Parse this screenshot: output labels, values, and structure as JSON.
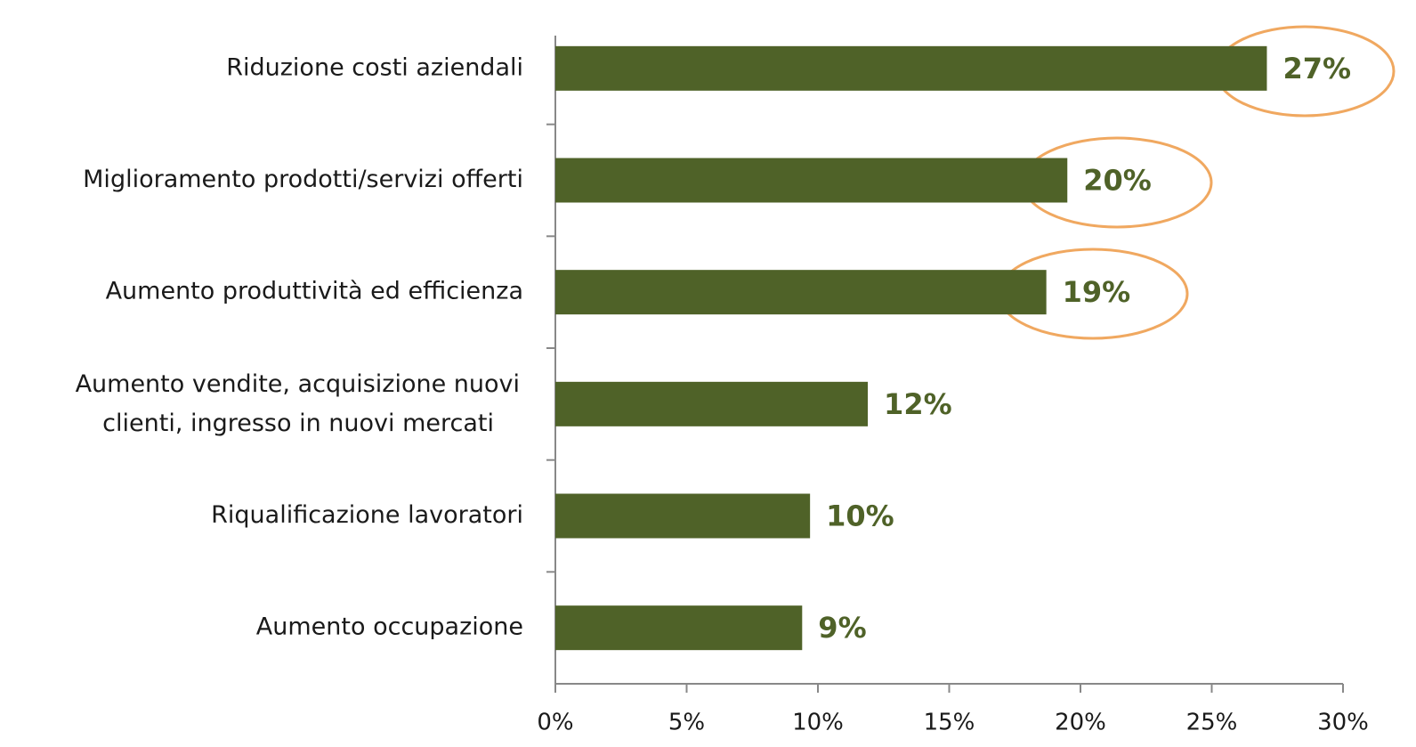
{
  "chart_data": {
    "type": "bar",
    "orientation": "horizontal",
    "categories": [
      "Riduzione costi aziendali",
      "Miglioramento prodotti/servizi offerti",
      "Aumento produttività ed efficienza",
      "Aumento vendite, acquisizione nuovi\nclienti, ingresso in nuovi  mercati",
      "Riqualificazione lavoratori",
      "Aumento occupazione"
    ],
    "values": [
      27.1,
      19.5,
      18.7,
      11.9,
      9.7,
      9.4
    ],
    "value_labels": [
      "27%",
      "20%",
      "19%",
      "12%",
      "10%",
      "9%"
    ],
    "color": "#4f6228",
    "xlim": [
      0,
      30
    ],
    "xticks": [
      {
        "value": 0,
        "label": "0%"
      },
      {
        "value": 5,
        "label": "5%"
      },
      {
        "value": 10,
        "label": "10%"
      },
      {
        "value": 15,
        "label": "15%"
      },
      {
        "value": 20,
        "label": "20%"
      },
      {
        "value": 25,
        "label": "25%"
      },
      {
        "value": 30,
        "label": "30%"
      }
    ],
    "grid": false
  }
}
